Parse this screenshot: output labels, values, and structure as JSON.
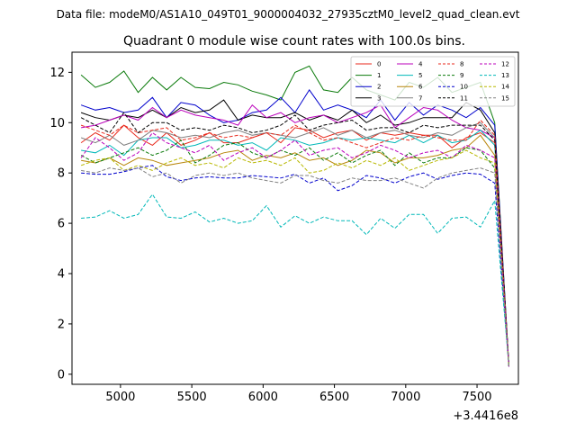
{
  "header": {
    "datafile": "Data file: modeM0/AS1A10_049T01_9000004032_27935cztM0_level2_quad_clean.evt"
  },
  "chart_data": {
    "type": "line",
    "title": "Quadrant 0 module wise count rates with 100.0s bins.",
    "xlabel": "",
    "ylabel": "",
    "x_offset_label": "+3.4416e8",
    "xlim": [
      4660,
      7790
    ],
    "ylim": [
      -0.4,
      12.8
    ],
    "x_ticks": [
      5000,
      5500,
      6000,
      6500,
      7000,
      7500
    ],
    "y_ticks": [
      0,
      2,
      4,
      6,
      8,
      10,
      12
    ],
    "grid": false,
    "legend_position": "top-right",
    "x": [
      4724,
      4824,
      4924,
      5024,
      5124,
      5224,
      5324,
      5424,
      5524,
      5624,
      5724,
      5824,
      5924,
      6024,
      6124,
      6224,
      6324,
      6424,
      6524,
      6624,
      6724,
      6824,
      6924,
      7024,
      7124,
      7224,
      7324,
      7424,
      7524,
      7624,
      7724
    ],
    "series": [
      {
        "name": "0",
        "color": "#e8291c",
        "dash": "solid",
        "values": [
          9.2,
          9.6,
          9.3,
          9.9,
          9.4,
          9.1,
          9.6,
          9.1,
          9.3,
          9.6,
          9.2,
          9.2,
          9.4,
          9.6,
          9.2,
          9.8,
          9.7,
          9.4,
          9.6,
          9.7,
          9.3,
          9.6,
          9.5,
          9.6,
          9.5,
          9.5,
          9.0,
          9.4,
          9.6,
          9.2,
          0.3
        ]
      },
      {
        "name": "1",
        "color": "#0a7a0a",
        "dash": "solid",
        "values": [
          11.9,
          11.4,
          11.6,
          12.05,
          11.2,
          11.8,
          11.3,
          11.8,
          11.4,
          11.35,
          11.6,
          11.5,
          11.25,
          11.1,
          10.9,
          12.0,
          12.25,
          11.3,
          11.2,
          11.8,
          11.3,
          11.1,
          10.9,
          11.6,
          11.4,
          11.8,
          11.2,
          11.4,
          11.6,
          10.0,
          0.3
        ]
      },
      {
        "name": "2",
        "color": "#0000cc",
        "dash": "solid",
        "values": [
          10.7,
          10.5,
          10.6,
          10.4,
          10.5,
          11.0,
          10.2,
          10.8,
          10.7,
          10.3,
          10.0,
          10.1,
          10.4,
          10.5,
          11.0,
          10.4,
          11.3,
          10.5,
          10.7,
          10.5,
          10.2,
          10.9,
          10.1,
          10.8,
          10.3,
          10.7,
          10.5,
          10.2,
          10.6,
          9.9,
          0.3
        ]
      },
      {
        "name": "3",
        "color": "#000000",
        "dash": "solid",
        "values": [
          10.4,
          10.2,
          10.1,
          10.3,
          10.2,
          10.5,
          10.2,
          10.6,
          10.4,
          10.5,
          10.9,
          10.1,
          10.3,
          10.2,
          10.2,
          10.4,
          10.1,
          10.3,
          10.1,
          10.5,
          10.0,
          10.3,
          9.9,
          10.0,
          10.2,
          10.2,
          10.2,
          10.8,
          10.5,
          9.6,
          0.3
        ]
      },
      {
        "name": "4",
        "color": "#bb00bb",
        "dash": "solid",
        "values": [
          9.8,
          9.9,
          10.1,
          10.3,
          10.1,
          10.6,
          10.2,
          10.5,
          10.3,
          10.2,
          10.1,
          9.9,
          10.7,
          10.2,
          10.4,
          10.0,
          10.2,
          10.3,
          10.0,
          10.2,
          10.4,
          10.7,
          9.8,
          10.2,
          10.6,
          10.5,
          10.1,
          9.8,
          9.7,
          9.4,
          0.3
        ]
      },
      {
        "name": "5",
        "color": "#00b8b8",
        "dash": "solid",
        "values": [
          8.9,
          8.8,
          9.1,
          8.7,
          9.3,
          9.4,
          9.4,
          9.0,
          9.1,
          9.3,
          9.3,
          9.1,
          9.2,
          8.9,
          9.4,
          9.3,
          9.1,
          9.2,
          9.4,
          9.3,
          9.4,
          9.3,
          9.2,
          9.5,
          9.2,
          9.5,
          9.2,
          9.3,
          9.7,
          9.1,
          0.3
        ]
      },
      {
        "name": "6",
        "color": "#b8860b",
        "dash": "solid",
        "values": [
          8.5,
          8.4,
          8.6,
          8.3,
          8.6,
          8.5,
          8.3,
          8.4,
          8.5,
          8.6,
          8.8,
          8.9,
          8.5,
          8.7,
          8.6,
          8.8,
          8.5,
          8.6,
          8.3,
          8.5,
          8.9,
          8.8,
          8.4,
          8.6,
          8.6,
          8.7,
          8.9,
          9.0,
          9.5,
          8.7,
          0.3
        ]
      },
      {
        "name": "7",
        "color": "#808080",
        "dash": "solid",
        "values": [
          9.4,
          9.2,
          9.5,
          9.1,
          9.3,
          9.7,
          9.6,
          9.4,
          9.5,
          9.4,
          9.6,
          9.7,
          9.5,
          9.6,
          9.5,
          9.4,
          9.6,
          9.8,
          9.5,
          9.7,
          9.4,
          9.6,
          9.7,
          9.5,
          9.4,
          9.6,
          9.5,
          9.8,
          10.0,
          9.4,
          0.3
        ]
      },
      {
        "name": "8",
        "color": "#e8291c",
        "dash": "dashed",
        "values": [
          9.9,
          9.7,
          9.5,
          9.9,
          9.6,
          9.7,
          9.8,
          9.3,
          9.4,
          9.6,
          9.4,
          9.5,
          9.4,
          9.6,
          9.5,
          9.9,
          9.6,
          9.3,
          9.4,
          9.2,
          9.0,
          9.2,
          9.4,
          9.3,
          9.5,
          9.4,
          9.3,
          9.3,
          10.1,
          9.5,
          0.3
        ]
      },
      {
        "name": "9",
        "color": "#0a7a0a",
        "dash": "dashed",
        "values": [
          8.7,
          8.4,
          8.6,
          8.8,
          9.0,
          8.7,
          8.9,
          9.3,
          8.4,
          8.7,
          9.1,
          9.2,
          8.8,
          8.6,
          8.9,
          8.7,
          9.0,
          8.5,
          8.8,
          8.4,
          8.7,
          8.9,
          8.3,
          8.8,
          8.4,
          8.6,
          8.6,
          9.0,
          8.9,
          8.2,
          0.3
        ]
      },
      {
        "name": "10",
        "color": "#0000cc",
        "dash": "dashed",
        "values": [
          8.0,
          7.95,
          7.95,
          8.05,
          8.2,
          8.3,
          7.85,
          7.7,
          7.8,
          7.85,
          7.8,
          7.8,
          7.9,
          7.85,
          7.8,
          7.95,
          7.6,
          7.8,
          7.3,
          7.5,
          7.9,
          7.8,
          7.6,
          7.85,
          8.0,
          7.75,
          7.9,
          8.0,
          7.95,
          7.6,
          0.3
        ]
      },
      {
        "name": "11",
        "color": "#000000",
        "dash": "dashed",
        "values": [
          10.2,
          9.9,
          9.6,
          10.4,
          9.6,
          10.0,
          10.0,
          9.7,
          9.8,
          9.7,
          9.9,
          9.8,
          9.6,
          9.7,
          9.9,
          10.3,
          9.7,
          9.9,
          10.0,
          10.1,
          9.7,
          9.8,
          9.8,
          9.6,
          9.9,
          9.8,
          9.9,
          9.9,
          9.9,
          9.3,
          0.3
        ]
      },
      {
        "name": "12",
        "color": "#bb00bb",
        "dash": "dashed",
        "values": [
          8.6,
          9.4,
          9.0,
          8.5,
          8.8,
          9.6,
          9.2,
          9.0,
          8.8,
          9.1,
          8.5,
          8.8,
          9.0,
          8.6,
          8.9,
          9.3,
          8.7,
          8.9,
          9.0,
          8.6,
          8.8,
          9.1,
          8.9,
          8.6,
          8.8,
          8.9,
          8.6,
          9.1,
          8.9,
          8.6,
          0.3
        ]
      },
      {
        "name": "13",
        "color": "#00b8b8",
        "dash": "dashed",
        "values": [
          6.2,
          6.25,
          6.5,
          6.2,
          6.35,
          7.15,
          6.25,
          6.2,
          6.45,
          6.05,
          6.2,
          6.0,
          6.1,
          6.7,
          5.85,
          6.3,
          6.0,
          6.25,
          6.1,
          6.1,
          5.55,
          6.2,
          5.8,
          6.35,
          6.35,
          5.6,
          6.2,
          6.25,
          5.85,
          6.9,
          0.3
        ]
      },
      {
        "name": "14",
        "color": "#b8b800",
        "dash": "dashed",
        "values": [
          8.3,
          8.5,
          8.6,
          8.1,
          8.3,
          8.1,
          8.4,
          8.6,
          8.3,
          8.4,
          8.2,
          8.6,
          8.4,
          8.5,
          8.3,
          8.6,
          8.0,
          8.1,
          8.4,
          8.2,
          8.5,
          8.3,
          8.6,
          8.1,
          8.3,
          8.5,
          8.6,
          8.9,
          8.6,
          8.4,
          0.3
        ]
      },
      {
        "name": "15",
        "color": "#808080",
        "dash": "dashed",
        "values": [
          8.1,
          8.0,
          8.2,
          8.1,
          8.2,
          7.85,
          8.0,
          7.6,
          7.9,
          8.0,
          7.9,
          8.0,
          7.8,
          7.7,
          7.6,
          7.9,
          7.9,
          7.7,
          7.6,
          7.8,
          7.7,
          7.7,
          7.8,
          7.6,
          7.4,
          7.8,
          8.0,
          8.1,
          8.2,
          8.0,
          0.3
        ]
      }
    ]
  }
}
